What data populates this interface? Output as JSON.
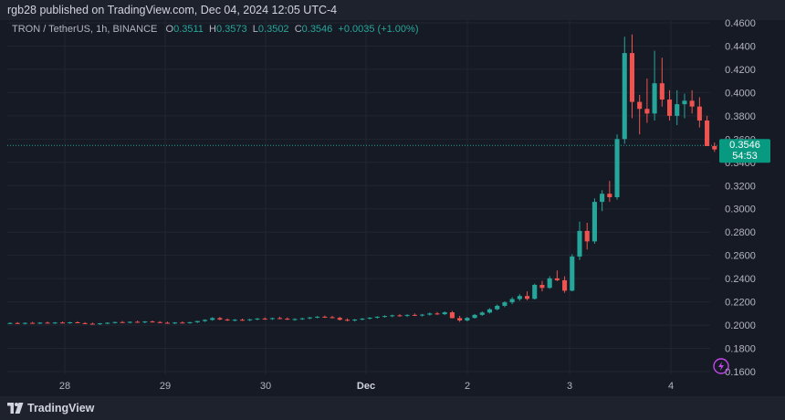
{
  "header": {
    "published": "rgb28 published on TradingView.com, Dec 04, 2024 12:05 UTC-4"
  },
  "legend": {
    "symbol": "TRON / TetherUS, 1h, BINANCE",
    "o_label": "O",
    "o": "0.3511",
    "h_label": "H",
    "h": "0.3573",
    "l_label": "L",
    "l": "0.3502",
    "c_label": "C",
    "c": "0.3546",
    "change": "+0.0035 (+1.00%)"
  },
  "price_badge": {
    "price": "0.3546",
    "countdown": "54:53"
  },
  "footer": {
    "brand": "TradingView"
  },
  "colors": {
    "up": "#26a69a",
    "down": "#ef5350",
    "background": "#161a25",
    "badge": "#089981"
  },
  "chart_data": {
    "type": "candlestick",
    "yticks": [
      "0.4600",
      "0.4400",
      "0.4200",
      "0.4000",
      "0.3800",
      "0.3600",
      "0.3400",
      "0.3200",
      "0.3000",
      "0.2800",
      "0.2600",
      "0.2400",
      "0.2200",
      "0.2000",
      "0.1800",
      "0.1600"
    ],
    "ylim": [
      0.155,
      0.465
    ],
    "xticks": [
      "28",
      "29",
      "30",
      "Dec",
      "2",
      "3",
      "4"
    ],
    "last_price": 0.3546,
    "candles": [
      [
        0.2015,
        0.2024,
        0.2008,
        0.2018
      ],
      [
        0.2018,
        0.2026,
        0.201,
        0.2012
      ],
      [
        0.2012,
        0.2022,
        0.2006,
        0.2019
      ],
      [
        0.2019,
        0.2028,
        0.2012,
        0.2015
      ],
      [
        0.2015,
        0.2025,
        0.2008,
        0.2021
      ],
      [
        0.2021,
        0.203,
        0.2014,
        0.2016
      ],
      [
        0.2016,
        0.2026,
        0.201,
        0.2022
      ],
      [
        0.2022,
        0.2031,
        0.2015,
        0.2018
      ],
      [
        0.2018,
        0.2028,
        0.2011,
        0.2024
      ],
      [
        0.2024,
        0.2033,
        0.2016,
        0.2017
      ],
      [
        0.2017,
        0.2026,
        0.2008,
        0.2012
      ],
      [
        0.2012,
        0.2022,
        0.2004,
        0.2008
      ],
      [
        0.2008,
        0.2018,
        0.2002,
        0.2015
      ],
      [
        0.2015,
        0.2024,
        0.2008,
        0.202
      ],
      [
        0.202,
        0.203,
        0.2014,
        0.2026
      ],
      [
        0.2026,
        0.2035,
        0.2018,
        0.2021
      ],
      [
        0.2021,
        0.2032,
        0.2015,
        0.2028
      ],
      [
        0.2028,
        0.2038,
        0.202,
        0.2024
      ],
      [
        0.2024,
        0.2035,
        0.2016,
        0.2031
      ],
      [
        0.2031,
        0.204,
        0.2022,
        0.2026
      ],
      [
        0.2026,
        0.2034,
        0.2016,
        0.202
      ],
      [
        0.202,
        0.203,
        0.2012,
        0.2016
      ],
      [
        0.2016,
        0.2026,
        0.2009,
        0.2022
      ],
      [
        0.2022,
        0.2032,
        0.2015,
        0.2018
      ],
      [
        0.2018,
        0.2028,
        0.2012,
        0.2025
      ],
      [
        0.2025,
        0.2036,
        0.2018,
        0.2035
      ],
      [
        0.2035,
        0.205,
        0.2028,
        0.2045
      ],
      [
        0.2045,
        0.2068,
        0.2038,
        0.206
      ],
      [
        0.206,
        0.207,
        0.2042,
        0.2048
      ],
      [
        0.2048,
        0.2058,
        0.2036,
        0.204
      ],
      [
        0.204,
        0.2052,
        0.2032,
        0.2046
      ],
      [
        0.2046,
        0.2056,
        0.2036,
        0.2042
      ],
      [
        0.2042,
        0.2054,
        0.2034,
        0.205
      ],
      [
        0.205,
        0.2062,
        0.2042,
        0.2056
      ],
      [
        0.2056,
        0.2066,
        0.2046,
        0.2052
      ],
      [
        0.2052,
        0.2064,
        0.2044,
        0.206
      ],
      [
        0.206,
        0.2072,
        0.205,
        0.2055
      ],
      [
        0.2055,
        0.2066,
        0.2044,
        0.2048
      ],
      [
        0.2048,
        0.2058,
        0.2038,
        0.2052
      ],
      [
        0.2052,
        0.2064,
        0.2044,
        0.2058
      ],
      [
        0.2058,
        0.207,
        0.205,
        0.2066
      ],
      [
        0.2066,
        0.2078,
        0.2058,
        0.2072
      ],
      [
        0.2072,
        0.2082,
        0.2062,
        0.2068
      ],
      [
        0.2068,
        0.208,
        0.2058,
        0.2062
      ],
      [
        0.2062,
        0.2072,
        0.204,
        0.2046
      ],
      [
        0.2046,
        0.2058,
        0.2032,
        0.204
      ],
      [
        0.204,
        0.2052,
        0.203,
        0.2048
      ],
      [
        0.2048,
        0.206,
        0.204,
        0.2056
      ],
      [
        0.2056,
        0.2068,
        0.2048,
        0.2064
      ],
      [
        0.2064,
        0.2076,
        0.2056,
        0.2072
      ],
      [
        0.2072,
        0.2084,
        0.2064,
        0.2078
      ],
      [
        0.2078,
        0.209,
        0.2068,
        0.2084
      ],
      [
        0.2084,
        0.2094,
        0.2072,
        0.208
      ],
      [
        0.208,
        0.2092,
        0.207,
        0.2088
      ],
      [
        0.2088,
        0.21,
        0.2078,
        0.2084
      ],
      [
        0.2084,
        0.2096,
        0.2074,
        0.209
      ],
      [
        0.209,
        0.2108,
        0.2082,
        0.21
      ],
      [
        0.21,
        0.2112,
        0.2088,
        0.2094
      ],
      [
        0.2094,
        0.2118,
        0.2086,
        0.211
      ],
      [
        0.211,
        0.2122,
        0.2058,
        0.206
      ],
      [
        0.206,
        0.208,
        0.2028,
        0.204
      ],
      [
        0.204,
        0.207,
        0.2032,
        0.2062
      ],
      [
        0.2062,
        0.2096,
        0.2056,
        0.2088
      ],
      [
        0.2088,
        0.2118,
        0.208,
        0.2108
      ],
      [
        0.2108,
        0.2146,
        0.21,
        0.2136
      ],
      [
        0.2136,
        0.2178,
        0.2128,
        0.2166
      ],
      [
        0.2166,
        0.2206,
        0.2154,
        0.2196
      ],
      [
        0.2196,
        0.224,
        0.218,
        0.2224
      ],
      [
        0.2224,
        0.2266,
        0.221,
        0.225
      ],
      [
        0.225,
        0.229,
        0.2214,
        0.2226
      ],
      [
        0.2226,
        0.2356,
        0.222,
        0.2346
      ],
      [
        0.2346,
        0.238,
        0.229,
        0.232
      ],
      [
        0.232,
        0.242,
        0.2312,
        0.2402
      ],
      [
        0.2402,
        0.247,
        0.2378,
        0.2386
      ],
      [
        0.2386,
        0.242,
        0.2278,
        0.2296
      ],
      [
        0.2296,
        0.261,
        0.229,
        0.259
      ],
      [
        0.259,
        0.289,
        0.256,
        0.281
      ],
      [
        0.281,
        0.288,
        0.265,
        0.272
      ],
      [
        0.272,
        0.309,
        0.27,
        0.306
      ],
      [
        0.306,
        0.316,
        0.298,
        0.313
      ],
      [
        0.313,
        0.324,
        0.306,
        0.31
      ],
      [
        0.31,
        0.364,
        0.308,
        0.36
      ],
      [
        0.36,
        0.448,
        0.356,
        0.434
      ],
      [
        0.434,
        0.45,
        0.378,
        0.392
      ],
      [
        0.392,
        0.398,
        0.364,
        0.386
      ],
      [
        0.386,
        0.412,
        0.374,
        0.382
      ],
      [
        0.382,
        0.436,
        0.376,
        0.408
      ],
      [
        0.408,
        0.43,
        0.388,
        0.394
      ],
      [
        0.394,
        0.402,
        0.376,
        0.38
      ],
      [
        0.38,
        0.402,
        0.372,
        0.39
      ],
      [
        0.39,
        0.399,
        0.378,
        0.393
      ],
      [
        0.393,
        0.402,
        0.382,
        0.388
      ],
      [
        0.388,
        0.396,
        0.37,
        0.376
      ],
      [
        0.376,
        0.38,
        0.354,
        0.354
      ],
      [
        0.354,
        0.357,
        0.349,
        0.3511
      ],
      [
        0.3511,
        0.3573,
        0.3502,
        0.3546
      ]
    ]
  }
}
